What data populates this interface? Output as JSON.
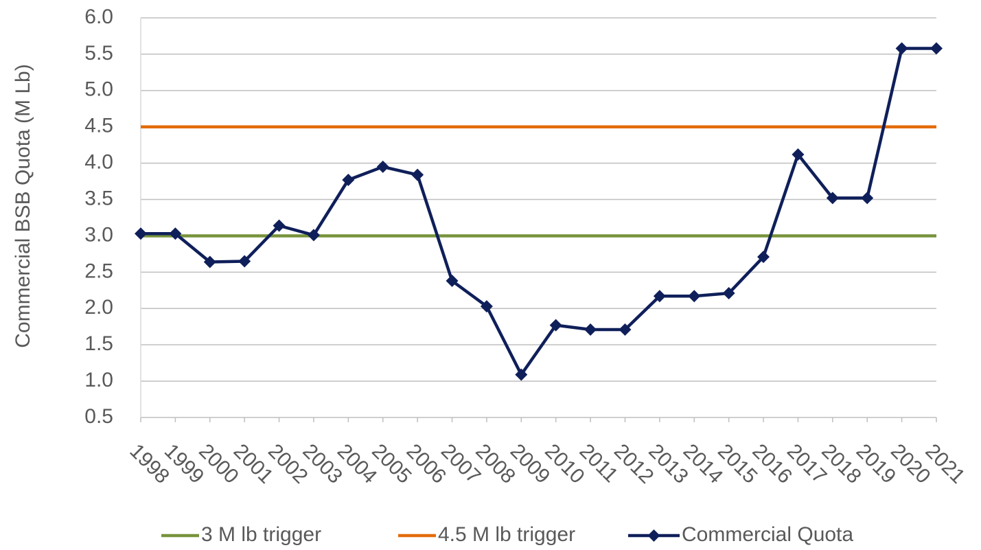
{
  "chart_data": {
    "type": "line",
    "y_axis_label": "Commercial BSB Quota (M Lb)",
    "categories": [
      "1998",
      "1999",
      "2000",
      "2001",
      "2002",
      "2003",
      "2004",
      "2005",
      "2006",
      "2007",
      "2008",
      "2009",
      "2010",
      "2011",
      "2012",
      "2013",
      "2014",
      "2015",
      "2016",
      "2017",
      "2018",
      "2019",
      "2020",
      "2021"
    ],
    "series": [
      {
        "name": "3 M lb trigger",
        "color": "#77933c",
        "values": [
          3,
          3,
          3,
          3,
          3,
          3,
          3,
          3,
          3,
          3,
          3,
          3,
          3,
          3,
          3,
          3,
          3,
          3,
          3,
          3,
          3,
          3,
          3,
          3
        ]
      },
      {
        "name": "4.5 M lb trigger",
        "color": "#e36c0a",
        "values": [
          4.5,
          4.5,
          4.5,
          4.5,
          4.5,
          4.5,
          4.5,
          4.5,
          4.5,
          4.5,
          4.5,
          4.5,
          4.5,
          4.5,
          4.5,
          4.5,
          4.5,
          4.5,
          4.5,
          4.5,
          4.5,
          4.5,
          4.5,
          4.5
        ]
      },
      {
        "name": "Commercial Quota",
        "color": "#0f1f5a",
        "marker": "diamond",
        "values": [
          3.03,
          3.03,
          2.64,
          2.65,
          3.14,
          3.01,
          3.77,
          3.95,
          3.84,
          2.38,
          2.03,
          1.09,
          1.77,
          1.71,
          1.71,
          2.17,
          2.17,
          2.21,
          2.71,
          4.12,
          3.52,
          3.52,
          5.58,
          5.58
        ]
      }
    ],
    "ylim": [
      0.5,
      6.0
    ],
    "yticks": [
      0.5,
      {
        "value": 1,
        "label": "1.0"
      },
      1.5,
      {
        "value": 2,
        "label": "2.0"
      },
      2.5,
      {
        "value": 3,
        "label": "3.0"
      },
      3.5,
      {
        "value": 4,
        "label": "4.0"
      },
      4.5,
      {
        "value": 5,
        "label": "5.0"
      },
      5.5,
      {
        "value": 6,
        "label": "6.0"
      }
    ],
    "grid": true,
    "legend": "bottom"
  }
}
